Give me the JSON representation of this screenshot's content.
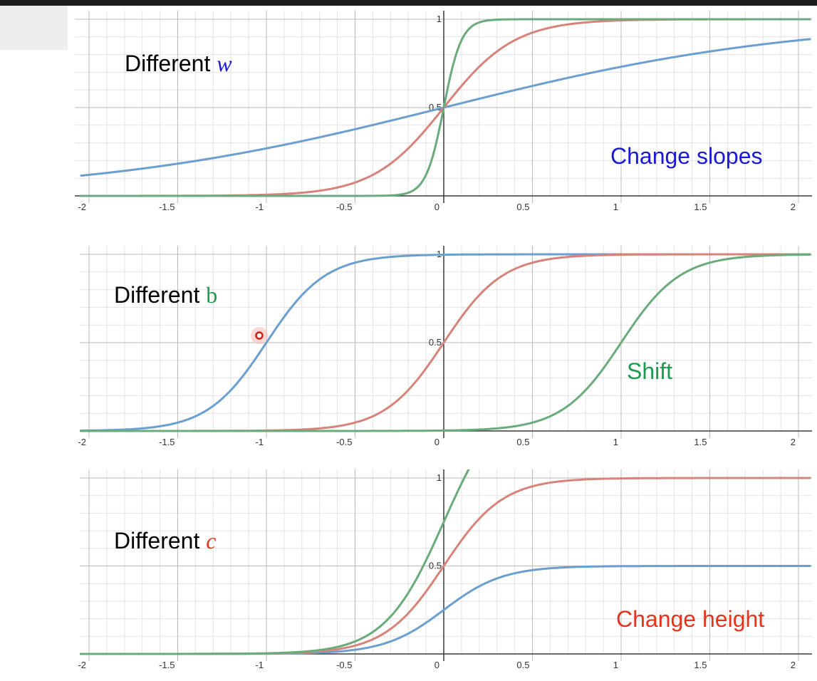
{
  "chart_data": [
    {
      "type": "line",
      "title": "Different w",
      "annotation": "Change slopes",
      "title_color": "#000000",
      "title_var_color": "#1a1ad6",
      "annotation_color": "#1a1ad6",
      "xlim": [
        -2.05,
        2.07
      ],
      "ylim": [
        0,
        1
      ],
      "x_ticks": [
        "-2",
        "-1.5",
        "-1",
        "-0.5",
        "0",
        "0.5",
        "1",
        "1.5",
        "2"
      ],
      "y_ticks": [
        "0.5",
        "1"
      ],
      "grid": true,
      "series": [
        {
          "color": "#6a9fd0",
          "w": 1,
          "b": 0,
          "c": 1
        },
        {
          "color": "#d88379",
          "w": 5,
          "b": 0,
          "c": 1
        },
        {
          "color": "#6aab7c",
          "w": 20,
          "b": 0,
          "c": 1
        }
      ]
    },
    {
      "type": "line",
      "title": "Different b",
      "annotation": "Shift",
      "title_color": "#000000",
      "title_var_color": "#1e9a4f",
      "annotation_color": "#1e9a4f",
      "xlim": [
        -2.05,
        2.07
      ],
      "ylim": [
        0,
        1
      ],
      "x_ticks": [
        "-2",
        "-1.5",
        "-1",
        "-0.5",
        "0",
        "0.5",
        "1",
        "1.5",
        "2"
      ],
      "y_ticks": [
        "0.5",
        "1"
      ],
      "grid": true,
      "series": [
        {
          "color": "#6a9fd0",
          "w": 6,
          "b": 6,
          "c": 1
        },
        {
          "color": "#d88379",
          "w": 6,
          "b": 0,
          "c": 1
        },
        {
          "color": "#6aab7c",
          "w": 6,
          "b": -6,
          "c": 1
        }
      ]
    },
    {
      "type": "line",
      "title": "Different c",
      "annotation": "Change height",
      "title_color": "#000000",
      "title_var_color": "#e5341c",
      "annotation_color": "#e5341c",
      "xlim": [
        -2.05,
        2.07
      ],
      "ylim": [
        0,
        1
      ],
      "x_ticks": [
        "-2",
        "-1.5",
        "-1",
        "-0.5",
        "0",
        "0.5",
        "1",
        "1.5",
        "2"
      ],
      "y_ticks": [
        "0.5",
        "1"
      ],
      "grid": true,
      "series": [
        {
          "color": "#6a9fd0",
          "w": 6,
          "b": 0,
          "c": 0.5
        },
        {
          "color": "#d88379",
          "w": 6,
          "b": 0,
          "c": 1
        },
        {
          "color": "#6aab7c",
          "w": 6,
          "b": 0,
          "c": 1.5
        }
      ]
    }
  ]
}
